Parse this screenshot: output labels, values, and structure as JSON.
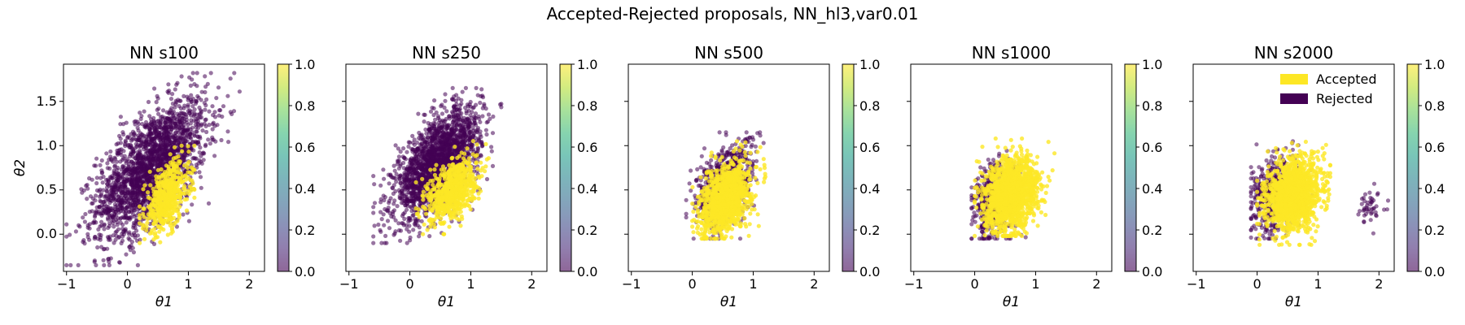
{
  "figure": {
    "title": "Accepted-Rejected proposals, NN_hl3,var0.01"
  },
  "colors": {
    "accepted": "#fde725",
    "rejected": "#440154",
    "colorbar_stops": [
      "#440154",
      "#482878",
      "#3e4989",
      "#31688e",
      "#26828e",
      "#1f9e89",
      "#35b779",
      "#6ece58",
      "#b5de2b",
      "#fde725"
    ]
  },
  "legend": {
    "location": "top-right",
    "entries": [
      {
        "label": "Accepted",
        "color": "#fde725"
      },
      {
        "label": "Rejected",
        "color": "#440154"
      }
    ]
  },
  "chart_data": [
    {
      "type": "scatter",
      "title": "NN s100",
      "xlabel": "θ1",
      "ylabel": "θ2",
      "xlim": [
        -1.05,
        2.25
      ],
      "ylim": [
        -0.42,
        1.92
      ],
      "xticks": [
        -1,
        0,
        1,
        2
      ],
      "yticks": [
        0.0,
        0.5,
        1.0,
        1.5
      ],
      "colorbar": {
        "range": [
          0.0,
          1.0
        ],
        "ticks": [
          "0.0",
          "0.2",
          "0.4",
          "0.6",
          "0.8",
          "1.0"
        ]
      },
      "series": [
        {
          "name": "Rejected",
          "value": 0,
          "n": 2200,
          "center": [
            0.4,
            0.75
          ],
          "spread": [
            0.45,
            0.38
          ],
          "corr": 0.6,
          "x_range": [
            -1.0,
            2.1
          ],
          "y_range": [
            -0.35,
            1.82
          ]
        },
        {
          "name": "Accepted",
          "value": 1,
          "n": 550,
          "center": [
            0.65,
            0.42
          ],
          "spread": [
            0.18,
            0.2
          ],
          "corr": 0.45,
          "x_range": [
            0.2,
            1.1
          ],
          "y_range": [
            -0.1,
            1.0
          ]
        }
      ]
    },
    {
      "type": "scatter",
      "title": "NN s250",
      "xlabel": "θ1",
      "ylabel": "",
      "xlim": [
        -1.05,
        2.25
      ],
      "ylim": [
        -0.42,
        1.92
      ],
      "xticks": [
        -1,
        0,
        1,
        2
      ],
      "yticks": [
        0.0,
        0.5,
        1.0,
        1.5
      ],
      "colorbar": {
        "range": [
          0.0,
          1.0
        ],
        "ticks": [
          "0.0",
          "0.2",
          "0.4",
          "0.6",
          "0.8",
          "1.0"
        ]
      },
      "series": [
        {
          "name": "Rejected",
          "value": 0,
          "n": 2000,
          "center": [
            0.45,
            0.8
          ],
          "spread": [
            0.35,
            0.3
          ],
          "corr": 0.6,
          "x_range": [
            -0.6,
            1.5
          ],
          "y_range": [
            -0.1,
            1.65
          ]
        },
        {
          "name": "Accepted",
          "value": 1,
          "n": 700,
          "center": [
            0.7,
            0.5
          ],
          "spread": [
            0.2,
            0.18
          ],
          "corr": 0.45,
          "x_range": [
            0.1,
            1.3
          ],
          "y_range": [
            0.0,
            1.1
          ]
        }
      ]
    },
    {
      "type": "scatter",
      "title": "NN s500",
      "xlabel": "θ1",
      "ylabel": "",
      "xlim": [
        -1.05,
        2.25
      ],
      "ylim": [
        -0.42,
        1.92
      ],
      "xticks": [
        -1,
        0,
        1,
        2
      ],
      "yticks": [
        0.0,
        0.5,
        1.0,
        1.5
      ],
      "colorbar": {
        "range": [
          0.0,
          1.0
        ],
        "ticks": [
          "0.0",
          "0.2",
          "0.4",
          "0.6",
          "0.8",
          "1.0"
        ]
      },
      "series": [
        {
          "name": "Rejected",
          "value": 0,
          "n": 750,
          "center": [
            0.55,
            0.55
          ],
          "spread": [
            0.24,
            0.24
          ],
          "corr": 0.4,
          "x_range": [
            -0.1,
            1.45
          ],
          "y_range": [
            -0.05,
            1.15
          ]
        },
        {
          "name": "Accepted",
          "value": 1,
          "n": 1100,
          "center": [
            0.55,
            0.4
          ],
          "spread": [
            0.2,
            0.2
          ],
          "corr": 0.4,
          "x_range": [
            0.0,
            1.2
          ],
          "y_range": [
            -0.05,
            1.05
          ]
        }
      ]
    },
    {
      "type": "scatter",
      "title": "NN s1000",
      "xlabel": "θ1",
      "ylabel": "",
      "xlim": [
        -1.05,
        2.25
      ],
      "ylim": [
        -0.42,
        1.92
      ],
      "xticks": [
        -1,
        0,
        1,
        2
      ],
      "yticks": [
        0.0,
        0.5,
        1.0,
        1.5
      ],
      "colorbar": {
        "range": [
          0.0,
          1.0
        ],
        "ticks": [
          "0.0",
          "0.2",
          "0.4",
          "0.6",
          "0.8",
          "1.0"
        ]
      },
      "series": [
        {
          "name": "Rejected",
          "value": 0,
          "n": 500,
          "center": [
            0.35,
            0.4
          ],
          "spread": [
            0.2,
            0.22
          ],
          "corr": 0.2,
          "x_range": [
            -0.05,
            1.1
          ],
          "y_range": [
            -0.05,
            1.0
          ]
        },
        {
          "name": "Accepted",
          "value": 1,
          "n": 1500,
          "center": [
            0.6,
            0.45
          ],
          "spread": [
            0.22,
            0.2
          ],
          "corr": 0.2,
          "x_range": [
            0.0,
            1.65
          ],
          "y_range": [
            -0.02,
            1.08
          ]
        }
      ]
    },
    {
      "type": "scatter",
      "title": "NN s2000",
      "xlabel": "θ1",
      "ylabel": "",
      "xlim": [
        -1.05,
        2.25
      ],
      "ylim": [
        -0.42,
        1.92
      ],
      "xticks": [
        -1,
        0,
        1,
        2
      ],
      "yticks": [
        0.0,
        0.5,
        1.0,
        1.5
      ],
      "colorbar": {
        "range": [
          0.0,
          1.0
        ],
        "ticks": [
          "0.0",
          "0.2",
          "0.4",
          "0.6",
          "0.8",
          "1.0"
        ]
      },
      "series": [
        {
          "name": "Rejected",
          "value": 0,
          "n": 520,
          "center": [
            0.3,
            0.45
          ],
          "spread": [
            0.2,
            0.22
          ],
          "corr": 0.2,
          "x_range": [
            -0.1,
            1.1
          ],
          "y_range": [
            -0.05,
            1.05
          ]
        },
        {
          "name": "Accepted",
          "value": 1,
          "n": 1400,
          "center": [
            0.6,
            0.45
          ],
          "spread": [
            0.22,
            0.2
          ],
          "corr": 0.2,
          "x_range": [
            0.0,
            1.2
          ],
          "y_range": [
            -0.12,
            1.08
          ]
        },
        {
          "name": "Rejected",
          "value": 0,
          "n": 45,
          "center": [
            1.85,
            0.3
          ],
          "spread": [
            0.12,
            0.1
          ],
          "corr": 0.0,
          "x_range": [
            1.6,
            2.15
          ],
          "y_range": [
            0.0,
            0.6
          ]
        }
      ]
    }
  ]
}
